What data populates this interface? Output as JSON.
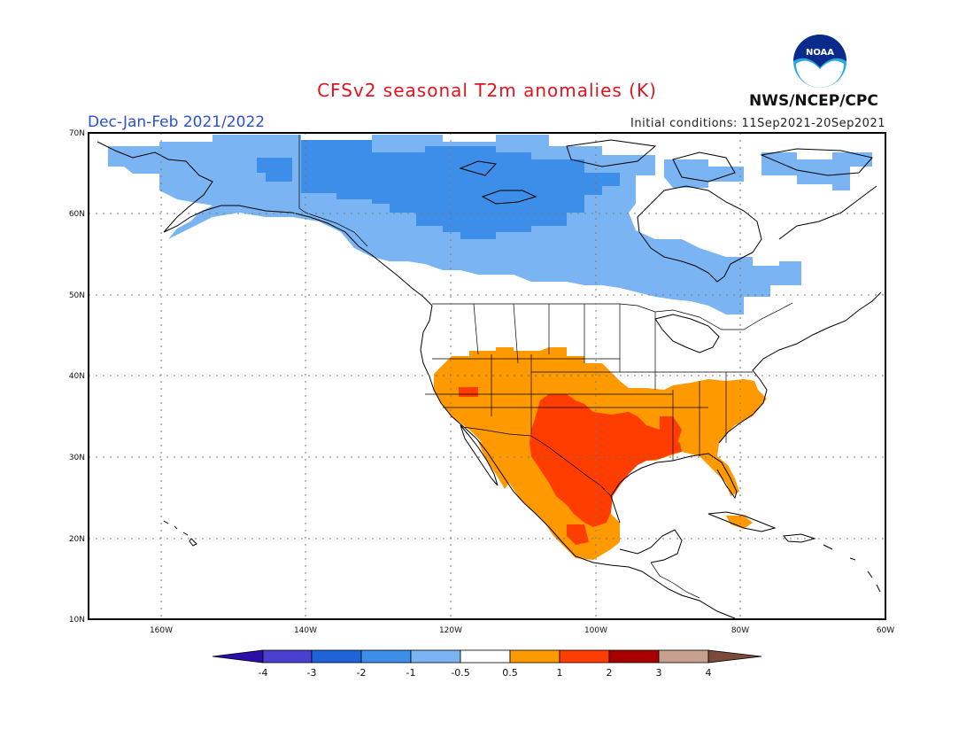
{
  "header": {
    "title": "CFSv2 seasonal T2m anomalies (K)",
    "season": "Dec-Jan-Feb 2021/2022",
    "initial_conditions": "Initial conditions: 11Sep2021-20Sep2021",
    "organization": "NWS/NCEP/CPC",
    "logo_text": "NOAA"
  },
  "map": {
    "region": "North America",
    "lon_range": [
      -170,
      -60
    ],
    "lat_range": [
      10,
      70
    ],
    "lat_labels": [
      "70N",
      "60N",
      "50N",
      "40N",
      "30N",
      "20N",
      "10N"
    ],
    "lon_labels": [
      "160W",
      "140W",
      "120W",
      "100W",
      "80W",
      "60W"
    ],
    "grid": "dotted"
  },
  "colorbar": {
    "labels": [
      "-4",
      "-3",
      "-2",
      "-1",
      "-0.5",
      "0.5",
      "1",
      "2",
      "3",
      "4"
    ],
    "colors": [
      "#2a0fa8",
      "#4a3fcf",
      "#1e64d8",
      "#3c8ee8",
      "#7ab4f2",
      "#ffffff",
      "#ff9900",
      "#ff3d00",
      "#a80000",
      "#c8a090",
      "#7a4a3a"
    ]
  },
  "colors": {
    "cold_light": "#7ab4f2",
    "cold_mid": "#3c8ee8",
    "warm_light": "#ff9900",
    "warm_mid": "#ff3d00"
  }
}
